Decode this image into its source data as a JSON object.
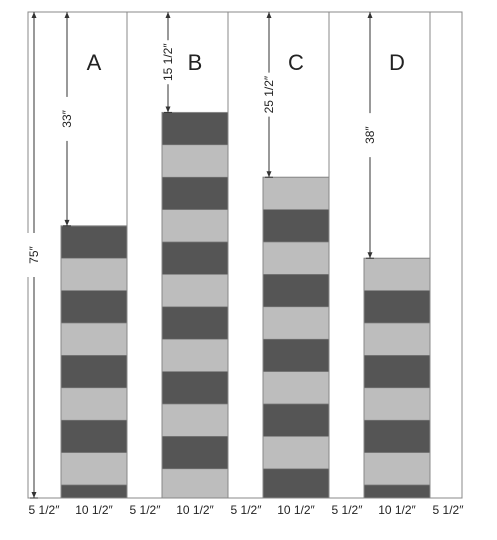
{
  "colors": {
    "light_stripe": "#bdbdbd",
    "dark_stripe": "#555555",
    "outline": "#888888",
    "dim_line": "#333333"
  },
  "total_height": {
    "label": "75″",
    "value_in": 75
  },
  "stripe_unit_in": 5,
  "columns": [
    {
      "letter": "A",
      "drop_label": "33″",
      "drop_in": 33,
      "phase": 1
    },
    {
      "letter": "B",
      "drop_label": "15 1/2″",
      "drop_in": 15.5,
      "phase": 1
    },
    {
      "letter": "C",
      "drop_label": "25 1/2″",
      "drop_in": 25.5,
      "phase": 0
    },
    {
      "letter": "D",
      "drop_label": "38″",
      "drop_in": 38,
      "phase": 0
    }
  ],
  "width_labels": [
    "5 1/2″",
    "10 1/2″",
    "5 1/2″",
    "10 1/2″",
    "5 1/2″",
    "10 1/2″",
    "5 1/2″",
    "10 1/2″",
    "5 1/2″"
  ]
}
